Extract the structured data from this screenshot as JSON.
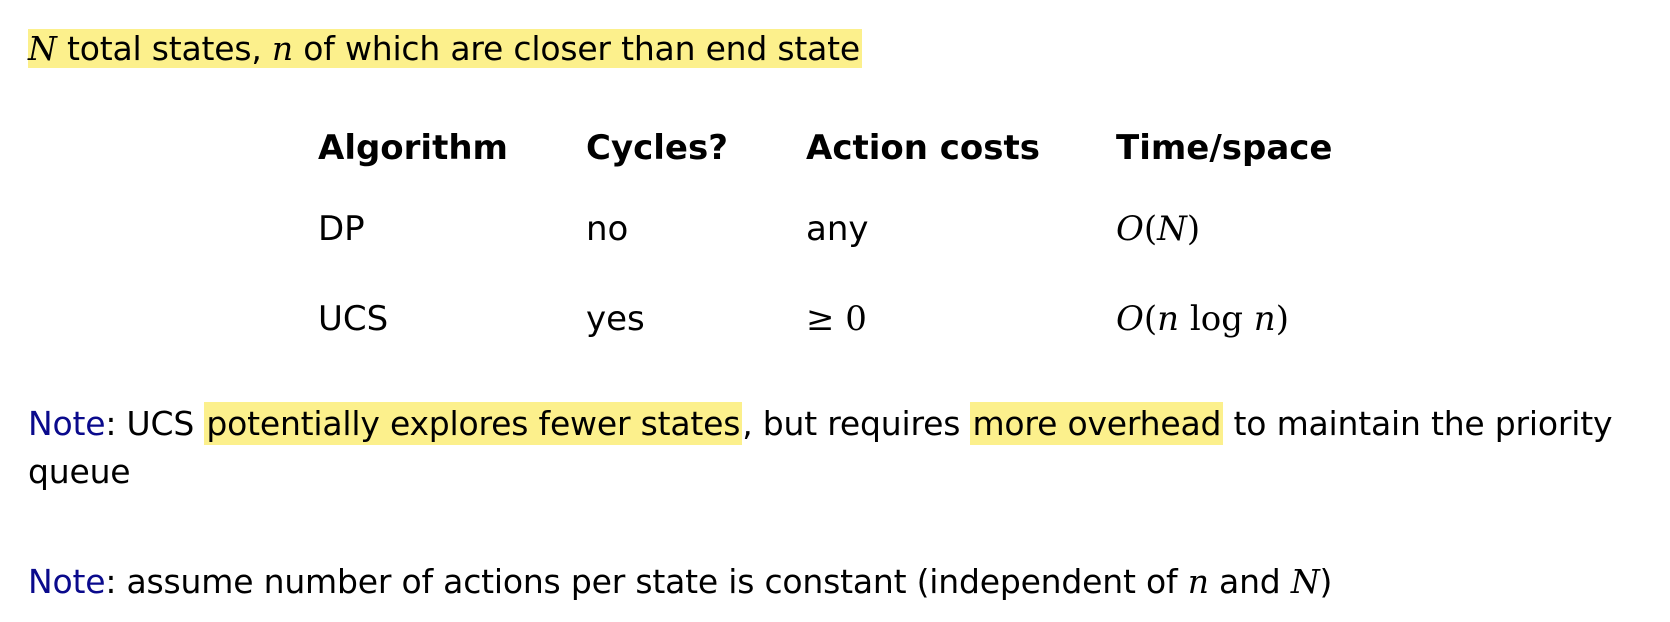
{
  "intro": {
    "var_N": "N",
    "text1": " total states, ",
    "var_n": "n",
    "text2": " of which are closer than end state"
  },
  "table": {
    "headers": [
      "Algorithm",
      "Cycles?",
      "Action costs",
      "Time/space"
    ],
    "rows": [
      {
        "algorithm": "DP",
        "cycles": "no",
        "costs": "any",
        "complexity_O": "O",
        "complexity_open": "(",
        "complexity_var": "N",
        "complexity_close": ")"
      },
      {
        "algorithm": "UCS",
        "cycles": "yes",
        "costs_sym": "≥ 0",
        "complexity_O": "O",
        "complexity_open": "(",
        "complexity_n1": "n",
        "complexity_log": " log ",
        "complexity_n2": "n",
        "complexity_close": ")"
      }
    ]
  },
  "note1": {
    "label": "Note",
    "colon": ":  UCS ",
    "highlight1": "potentially explores fewer states",
    "mid": ", but requires ",
    "highlight2": "more overhead",
    "end": " to maintain the priority queue"
  },
  "note2": {
    "label": "Note",
    "text1": ": assume number of actions per state is constant (independent of ",
    "var_n": "n",
    "text2": " and ",
    "var_N": "N",
    "text3": ")"
  },
  "colors": {
    "highlight": "#fcf08c",
    "note_label": "#0a0a8c"
  }
}
